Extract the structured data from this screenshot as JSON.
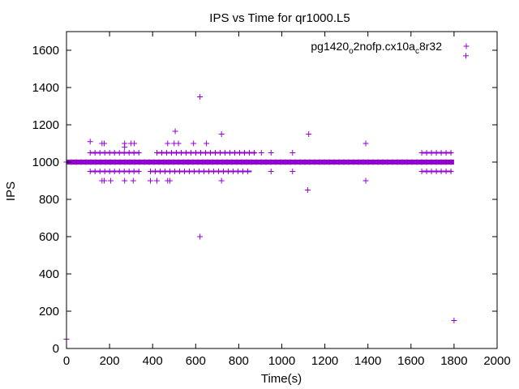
{
  "chart_data": {
    "type": "scatter",
    "title": "IPS vs Time for qr1000.L5",
    "xlabel": "Time(s)",
    "ylabel": "IPS",
    "xlim": [
      0,
      2000
    ],
    "ylim": [
      0,
      1700
    ],
    "xticks": [
      0,
      200,
      400,
      600,
      800,
      1000,
      1200,
      1400,
      1600,
      1800,
      2000
    ],
    "yticks": [
      0,
      200,
      400,
      600,
      800,
      1000,
      1200,
      1400,
      1600
    ],
    "grid": false,
    "legend_position": "top-right",
    "marker": "plus",
    "color": "#9400d3",
    "series": [
      {
        "name_parts": [
          "pg1420",
          "o",
          "2nofp.cx10a",
          "c",
          "8r32"
        ],
        "bands": [
          {
            "y": 1000,
            "x_start": 0,
            "x_end": 1800
          },
          {
            "y": 950,
            "x_start": 110,
            "x_end": 340
          },
          {
            "y": 950,
            "x_start": 390,
            "x_end": 860
          },
          {
            "y": 950,
            "x_start": 1650,
            "x_end": 1790
          },
          {
            "y": 1050,
            "x_start": 110,
            "x_end": 340
          },
          {
            "y": 1050,
            "x_start": 420,
            "x_end": 880
          },
          {
            "y": 1050,
            "x_start": 1650,
            "x_end": 1790
          }
        ],
        "points": [
          {
            "x": 0,
            "y": 50
          },
          {
            "x": 110,
            "y": 1110
          },
          {
            "x": 165,
            "y": 1100
          },
          {
            "x": 175,
            "y": 1100
          },
          {
            "x": 270,
            "y": 1100
          },
          {
            "x": 270,
            "y": 1080
          },
          {
            "x": 300,
            "y": 1100
          },
          {
            "x": 315,
            "y": 1100
          },
          {
            "x": 470,
            "y": 1100
          },
          {
            "x": 500,
            "y": 1100
          },
          {
            "x": 505,
            "y": 1165
          },
          {
            "x": 520,
            "y": 1100
          },
          {
            "x": 590,
            "y": 1100
          },
          {
            "x": 650,
            "y": 1100
          },
          {
            "x": 620,
            "y": 1350
          },
          {
            "x": 720,
            "y": 1150
          },
          {
            "x": 1125,
            "y": 1150
          },
          {
            "x": 1390,
            "y": 1100
          },
          {
            "x": 1855,
            "y": 1570
          },
          {
            "x": 1050,
            "y": 1050
          },
          {
            "x": 1050,
            "y": 950
          },
          {
            "x": 950,
            "y": 1050
          },
          {
            "x": 950,
            "y": 950
          },
          {
            "x": 905,
            "y": 1050
          },
          {
            "x": 1120,
            "y": 850
          },
          {
            "x": 1390,
            "y": 900
          },
          {
            "x": 620,
            "y": 600
          },
          {
            "x": 1800,
            "y": 150
          },
          {
            "x": 165,
            "y": 900
          },
          {
            "x": 175,
            "y": 900
          },
          {
            "x": 205,
            "y": 900
          },
          {
            "x": 270,
            "y": 900
          },
          {
            "x": 310,
            "y": 900
          },
          {
            "x": 390,
            "y": 900
          },
          {
            "x": 420,
            "y": 900
          },
          {
            "x": 470,
            "y": 900
          },
          {
            "x": 480,
            "y": 900
          },
          {
            "x": 720,
            "y": 900
          }
        ]
      }
    ]
  }
}
